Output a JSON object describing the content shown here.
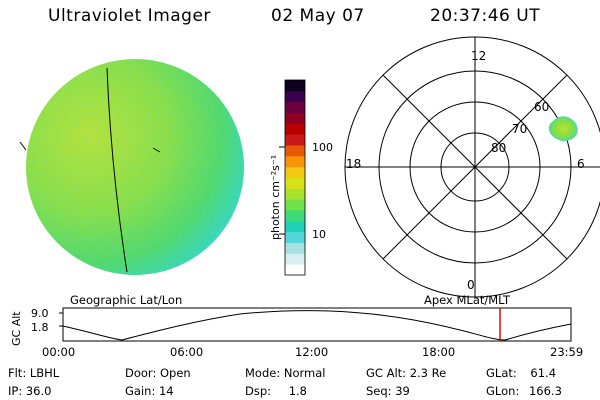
{
  "header": {
    "title": "Ultraviolet Imager",
    "date": "02 May 07",
    "time": "20:37:46 UT"
  },
  "colorbar": {
    "label": "photon cm⁻²s⁻¹",
    "ticks": [
      "100",
      "10"
    ],
    "scale": "log",
    "colors": [
      "#ffffff",
      "#d8eef0",
      "#a8e0e4",
      "#55d6dc",
      "#1fd0b4",
      "#3cdb7a",
      "#72e04a",
      "#a8e22a",
      "#d8e018",
      "#f2c810",
      "#f89208",
      "#e85a08",
      "#c81818",
      "#b80000",
      "#900020",
      "#6a0040",
      "#3a0050",
      "#100020"
    ]
  },
  "geo_map": {
    "label": "Geographic Lat/Lon"
  },
  "polar_plot": {
    "label": "Apex MLat/MLT",
    "mlt_labels": {
      "top": "12",
      "left": "18",
      "right": "6",
      "bottom": "0"
    },
    "mlat_labels": [
      "60",
      "70",
      "80"
    ]
  },
  "altitude_plot": {
    "ylabel": "GC Alt",
    "yticks": [
      "9.0",
      "1.8"
    ],
    "xticks": [
      "00:00",
      "06:00",
      "12:00",
      "18:00",
      "23:59"
    ],
    "marker_color": "#cc0000",
    "marker_time": "20:37:46"
  },
  "footer": {
    "rows": [
      [
        {
          "label": "Flt:",
          "value": "LBHL"
        },
        {
          "label": "Door:",
          "value": "Open"
        },
        {
          "label": "Mode:",
          "value": "Normal"
        },
        {
          "label": "GC Alt:",
          "value": "2.3 Re"
        },
        {
          "label": "GLat:",
          "value": "61.4"
        }
      ],
      [
        {
          "label": "IP:",
          "value": "36.0"
        },
        {
          "label": "Gain:",
          "value": "14"
        },
        {
          "label": "Dsp:",
          "value": "1.8"
        },
        {
          "label": "Seq:",
          "value": "39"
        },
        {
          "label": "GLon:",
          "value": "166.3"
        }
      ]
    ]
  }
}
